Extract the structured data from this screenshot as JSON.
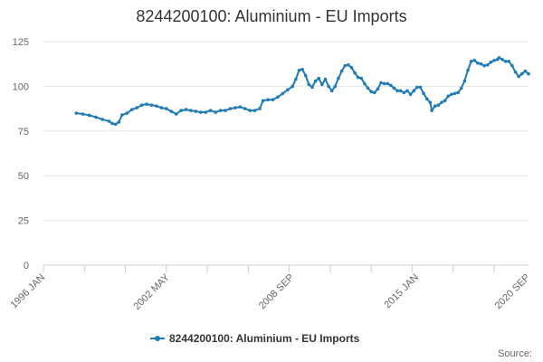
{
  "chart_data": {
    "type": "line",
    "title": "8244200100: Aluminium - EU Imports",
    "xlabel": "",
    "ylabel": "",
    "ylim": [
      0,
      125
    ],
    "yticks": [
      0,
      25,
      50,
      75,
      100,
      125
    ],
    "xlim": [
      "1996-01",
      "2020-09"
    ],
    "xticks": [
      "1996 JAN",
      "2002 MAY",
      "2008 SEP",
      "2015 JAN",
      "2020 SEP"
    ],
    "grid": "horizontal",
    "legend_position": "bottom-center",
    "source_label": "Source:",
    "colors": {
      "series": "#1f7bb6",
      "grid": "#e6e6e6",
      "axis": "#cccccc"
    },
    "series": [
      {
        "name": "8244200100: Aluminium - EU Imports",
        "points": [
          [
            "1997-09",
            85
          ],
          [
            "1998-01",
            84.5
          ],
          [
            "1998-05",
            83.8
          ],
          [
            "1998-09",
            82.8
          ],
          [
            "1999-01",
            81.5
          ],
          [
            "1999-05",
            80.5
          ],
          [
            "1999-07",
            79.2
          ],
          [
            "1999-09",
            78.8
          ],
          [
            "1999-11",
            80
          ],
          [
            "2000-01",
            84
          ],
          [
            "2000-04",
            85
          ],
          [
            "2000-07",
            87
          ],
          [
            "2000-10",
            88
          ],
          [
            "2001-01",
            89.5
          ],
          [
            "2001-04",
            90
          ],
          [
            "2001-07",
            89.5
          ],
          [
            "2001-10",
            89
          ],
          [
            "2002-01",
            88
          ],
          [
            "2002-04",
            87.5
          ],
          [
            "2002-07",
            86
          ],
          [
            "2002-10",
            84.5
          ],
          [
            "2003-01",
            86.5
          ],
          [
            "2003-04",
            87
          ],
          [
            "2003-07",
            86.5
          ],
          [
            "2003-10",
            86
          ],
          [
            "2004-01",
            85.5
          ],
          [
            "2004-04",
            85.5
          ],
          [
            "2004-07",
            86.5
          ],
          [
            "2004-10",
            85.5
          ],
          [
            "2005-01",
            86.5
          ],
          [
            "2005-04",
            86.5
          ],
          [
            "2005-07",
            87.5
          ],
          [
            "2005-10",
            88
          ],
          [
            "2006-01",
            88.5
          ],
          [
            "2006-04",
            87.5
          ],
          [
            "2006-07",
            86.5
          ],
          [
            "2006-10",
            86.5
          ],
          [
            "2007-01",
            87.5
          ],
          [
            "2007-03",
            92
          ],
          [
            "2007-06",
            92.5
          ],
          [
            "2007-09",
            92.5
          ],
          [
            "2007-12",
            94
          ],
          [
            "2008-03",
            96
          ],
          [
            "2008-06",
            98
          ],
          [
            "2008-09",
            100
          ],
          [
            "2008-11",
            104
          ],
          [
            "2009-01",
            109
          ],
          [
            "2009-03",
            109.5
          ],
          [
            "2009-05",
            106
          ],
          [
            "2009-07",
            101
          ],
          [
            "2009-09",
            99.5
          ],
          [
            "2009-11",
            103
          ],
          [
            "2010-01",
            104.5
          ],
          [
            "2010-03",
            101
          ],
          [
            "2010-05",
            104
          ],
          [
            "2010-07",
            100
          ],
          [
            "2010-09",
            97.5
          ],
          [
            "2010-11",
            100
          ],
          [
            "2011-01",
            104.5
          ],
          [
            "2011-03",
            108.5
          ],
          [
            "2011-05",
            111.5
          ],
          [
            "2011-07",
            112
          ],
          [
            "2011-09",
            110.5
          ],
          [
            "2011-11",
            107.5
          ],
          [
            "2012-01",
            105
          ],
          [
            "2012-03",
            104.5
          ],
          [
            "2012-05",
            101.5
          ],
          [
            "2012-07",
            99
          ],
          [
            "2012-09",
            97
          ],
          [
            "2012-11",
            96.5
          ],
          [
            "2013-01",
            98.5
          ],
          [
            "2013-03",
            102
          ],
          [
            "2013-05",
            101.5
          ],
          [
            "2013-07",
            101.5
          ],
          [
            "2013-09",
            100.5
          ],
          [
            "2013-11",
            99
          ],
          [
            "2014-01",
            97.5
          ],
          [
            "2014-03",
            97.5
          ],
          [
            "2014-05",
            96.5
          ],
          [
            "2014-07",
            97.5
          ],
          [
            "2014-09",
            95.5
          ],
          [
            "2014-11",
            97.5
          ],
          [
            "2015-01",
            99.5
          ],
          [
            "2015-03",
            99.5
          ],
          [
            "2015-05",
            96
          ],
          [
            "2015-07",
            93
          ],
          [
            "2015-09",
            91
          ],
          [
            "2015-10",
            86.5
          ],
          [
            "2015-12",
            89
          ],
          [
            "2016-02",
            89.5
          ],
          [
            "2016-04",
            91
          ],
          [
            "2016-06",
            92
          ],
          [
            "2016-08",
            94.5
          ],
          [
            "2016-10",
            95.5
          ],
          [
            "2016-12",
            96
          ],
          [
            "2017-02",
            96.5
          ],
          [
            "2017-04",
            99
          ],
          [
            "2017-06",
            103
          ],
          [
            "2017-08",
            109
          ],
          [
            "2017-10",
            114
          ],
          [
            "2017-12",
            114.5
          ],
          [
            "2018-02",
            113
          ],
          [
            "2018-04",
            112.5
          ],
          [
            "2018-06",
            111.5
          ],
          [
            "2018-08",
            112
          ],
          [
            "2018-10",
            113.5
          ],
          [
            "2018-12",
            114.5
          ],
          [
            "2019-02",
            115
          ],
          [
            "2019-03",
            116
          ],
          [
            "2019-05",
            115
          ],
          [
            "2019-07",
            114
          ],
          [
            "2019-09",
            114
          ],
          [
            "2019-11",
            111.5
          ],
          [
            "2020-01",
            108
          ],
          [
            "2020-03",
            105.5
          ],
          [
            "2020-05",
            107
          ],
          [
            "2020-07",
            108.5
          ],
          [
            "2020-09",
            107
          ]
        ]
      }
    ]
  }
}
